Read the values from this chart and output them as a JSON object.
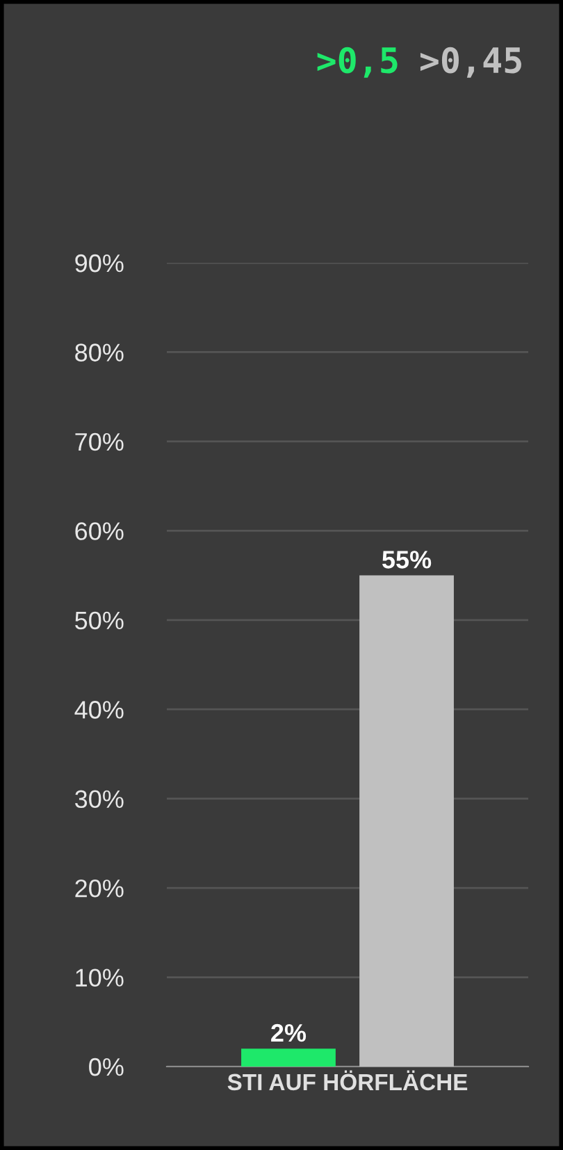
{
  "chart_data": {
    "type": "bar",
    "categories": [
      "STI AUF HÖRFLÄCHE"
    ],
    "series": [
      {
        "name": ">0,5",
        "color": "#1ee86a",
        "values": [
          2
        ]
      },
      {
        "name": ">0,45",
        "color": "#c0c0c0",
        "values": [
          55
        ]
      }
    ],
    "ylim": [
      0,
      90
    ],
    "yticks": [
      {
        "value": 0,
        "label": "0%"
      },
      {
        "value": 10,
        "label": "10%"
      },
      {
        "value": 20,
        "label": "20%"
      },
      {
        "value": 30,
        "label": "30%"
      },
      {
        "value": 40,
        "label": "40%"
      },
      {
        "value": 50,
        "label": "50%"
      },
      {
        "value": 60,
        "label": "60%"
      },
      {
        "value": 70,
        "label": "70%"
      },
      {
        "value": 80,
        "label": "80%"
      },
      {
        "value": 90,
        "label": "90%"
      }
    ],
    "value_labels": [
      [
        "2%"
      ],
      [
        "55%"
      ]
    ],
    "grid": "y",
    "legend": "top right"
  }
}
